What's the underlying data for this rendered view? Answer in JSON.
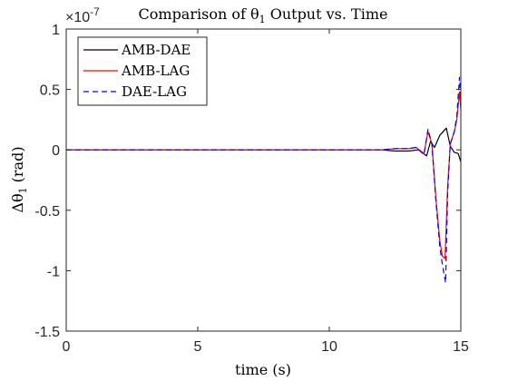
{
  "chart_data": {
    "type": "line",
    "title": "Comparison of θ",
    "title_sub": "1",
    "title_rest": " Output vs. Time",
    "xlabel": "time (s)",
    "ylabel": "Δθ",
    "ylabel_sub": "1",
    "ylabel_unit": " (rad)",
    "exponent_base": "×10",
    "exponent": "-7",
    "xlim": [
      0,
      15
    ],
    "ylim": [
      -1.5,
      1
    ],
    "xticks": [
      0,
      5,
      10,
      15
    ],
    "xtick_labels": [
      "0",
      "5",
      "10",
      "15"
    ],
    "yticks": [
      -1.5,
      -1,
      -0.5,
      0,
      0.5,
      1
    ],
    "ytick_labels": [
      "-1.5",
      "-1",
      "-0.5",
      "0",
      "0.5",
      "1"
    ],
    "grid": false,
    "legend_position": "top-left",
    "series": [
      {
        "name": "AMB-DAE",
        "color": "#000000",
        "dash": "solid",
        "x": [
          0,
          11,
          12,
          12.5,
          13,
          13.4,
          13.7,
          13.85,
          14.0,
          14.2,
          14.45,
          14.6,
          14.75,
          14.9,
          15.0
        ],
        "y": [
          0,
          0,
          0,
          -0.01,
          -0.01,
          0.0,
          -0.05,
          0.07,
          0.02,
          0.12,
          0.18,
          0.03,
          -0.02,
          -0.03,
          -0.1
        ]
      },
      {
        "name": "AMB-LAG",
        "color": "#ff0000",
        "dash": "solid",
        "x": [
          0,
          11,
          12,
          12.5,
          13,
          13.3,
          13.6,
          13.75,
          13.9,
          14.05,
          14.2,
          14.3,
          14.4,
          14.5,
          14.6,
          14.75,
          14.85,
          14.95,
          15.0
        ],
        "y": [
          0,
          0,
          0,
          0.01,
          0.01,
          0.02,
          -0.03,
          0.15,
          0.05,
          -0.4,
          -0.75,
          -0.88,
          -0.9,
          -0.3,
          0.05,
          0.15,
          0.25,
          0.48,
          0.33
        ]
      },
      {
        "name": "DAE-LAG",
        "color": "#0000ff",
        "dash": "dashed",
        "x": [
          0,
          11,
          12,
          12.5,
          13,
          13.3,
          13.6,
          13.75,
          13.9,
          14.05,
          14.2,
          14.3,
          14.42,
          14.5,
          14.6,
          14.75,
          14.85,
          14.95,
          15.0
        ],
        "y": [
          0,
          0,
          0,
          0.01,
          0.01,
          0.02,
          -0.04,
          0.17,
          0.05,
          -0.42,
          -0.8,
          -0.95,
          -1.1,
          -0.35,
          0.05,
          0.15,
          0.28,
          0.6,
          0.42
        ]
      }
    ]
  }
}
